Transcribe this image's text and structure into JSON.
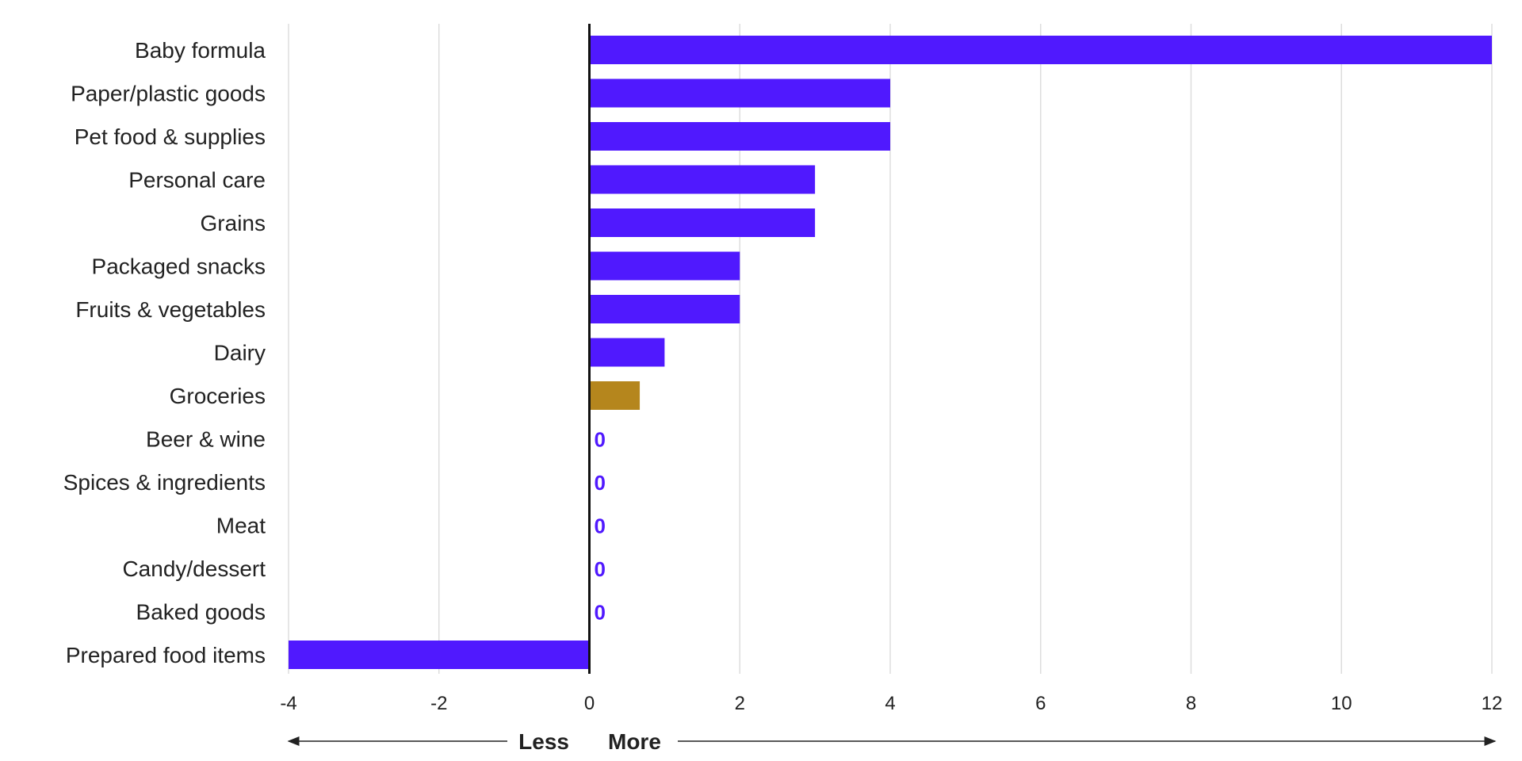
{
  "chart_data": {
    "type": "bar",
    "orientation": "horizontal",
    "categories": [
      "Baby formula",
      "Paper/plastic goods",
      "Pet food & supplies",
      "Personal care",
      "Grains",
      "Packaged snacks",
      "Fruits & vegetables",
      "Dairy",
      "Groceries",
      "Beer & wine",
      "Spices & ingredients",
      "Meat",
      "Candy/dessert",
      "Baked goods",
      "Prepared food items"
    ],
    "values": [
      12,
      4,
      4,
      3,
      3,
      2,
      2,
      1,
      0.67,
      0,
      0,
      0,
      0,
      0,
      -4
    ],
    "highlight_category": "Groceries",
    "xlim": [
      -4,
      12
    ],
    "xticks": [
      -4,
      -2,
      0,
      2,
      4,
      6,
      8,
      10,
      12
    ],
    "grid": true,
    "zero_value_label": "0",
    "direction_labels": {
      "negative": "Less",
      "positive": "More"
    },
    "colors": {
      "bar": "#5019fe",
      "highlight": "#b5861d",
      "grid": "#dddddd",
      "zero_axis": "#111111",
      "text": "#222222"
    }
  }
}
